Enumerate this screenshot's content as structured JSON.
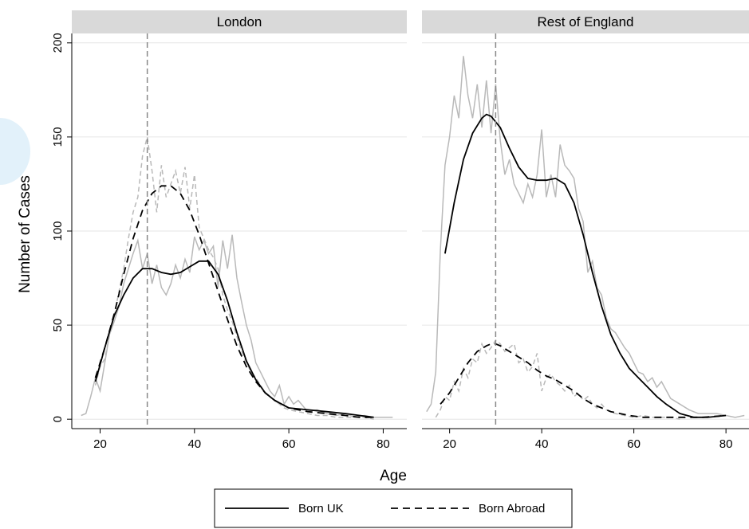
{
  "chart_data": {
    "type": "line",
    "xlabel": "Age",
    "ylabel": "Number of Cases",
    "xlim": [
      14,
      85
    ],
    "ylim": [
      -5,
      205
    ],
    "xticks": [
      20,
      40,
      60,
      80
    ],
    "yticks": [
      0,
      50,
      100,
      150,
      200
    ],
    "reference_x": 30,
    "legend": {
      "placement": "bottom-center",
      "entries": [
        {
          "label": "Born UK",
          "style": "solid"
        },
        {
          "label": "Born Abroad",
          "style": "dashed"
        }
      ]
    },
    "panels": [
      {
        "title": "London",
        "series": [
          {
            "name": "Born UK",
            "kind": "smoothed",
            "x": [
              19,
              21,
              23,
              25,
              27,
              29,
              31,
              33,
              35,
              37,
              39,
              41,
              43,
              45,
              47,
              49,
              51,
              53,
              55,
              57,
              60,
              64,
              68,
              72,
              75,
              78
            ],
            "y": [
              20,
              38,
              55,
              66,
              75,
              80,
              80,
              78,
              77,
              78,
              81,
              84,
              84,
              77,
              63,
              46,
              31,
              21,
              14,
              10,
              6,
              5,
              4,
              3,
              2,
              1
            ]
          },
          {
            "name": "Born Abroad",
            "kind": "smoothed",
            "x": [
              19,
              21,
              23,
              25,
              27,
              29,
              31,
              33,
              35,
              37,
              39,
              41,
              43,
              45,
              47,
              49,
              51,
              53,
              55,
              57,
              60,
              64,
              68,
              72,
              75,
              78
            ],
            "y": [
              22,
              38,
              56,
              77,
              96,
              111,
              120,
              124,
              124,
              120,
              111,
              98,
              83,
              68,
              53,
              39,
              28,
              20,
              14,
              10,
              6,
              4,
              3,
              2,
              1,
              1
            ]
          },
          {
            "name": "Born UK",
            "kind": "raw",
            "x": [
              16,
              17,
              18,
              19,
              20,
              21,
              22,
              23,
              24,
              25,
              26,
              27,
              28,
              29,
              30,
              31,
              32,
              33,
              34,
              35,
              36,
              37,
              38,
              39,
              40,
              41,
              42,
              43,
              44,
              45,
              46,
              47,
              48,
              49,
              50,
              51,
              52,
              53,
              54,
              55,
              56,
              57,
              58,
              59,
              60,
              61,
              62,
              64,
              66,
              68,
              70,
              72,
              74,
              76,
              78,
              80,
              82
            ],
            "y": [
              2,
              3,
              12,
              22,
              15,
              30,
              45,
              52,
              60,
              72,
              80,
              88,
              95,
              80,
              88,
              72,
              82,
              70,
              66,
              72,
              82,
              75,
              85,
              78,
              97,
              90,
              95,
              88,
              92,
              70,
              95,
              80,
              98,
              75,
              62,
              50,
              42,
              30,
              25,
              20,
              15,
              12,
              18,
              8,
              12,
              8,
              10,
              4,
              5,
              3,
              2,
              3,
              1,
              2,
              1,
              1,
              1
            ]
          },
          {
            "name": "Born Abroad",
            "kind": "raw",
            "x": [
              19,
              20,
              21,
              22,
              23,
              24,
              25,
              26,
              27,
              28,
              29,
              30,
              31,
              32,
              33,
              34,
              35,
              36,
              37,
              38,
              39,
              40,
              41,
              42,
              43,
              44,
              45,
              46,
              47,
              48,
              49,
              50,
              51,
              52,
              53,
              54,
              55,
              56,
              57,
              58,
              59,
              60,
              62,
              64,
              66,
              68,
              70,
              72,
              74,
              76,
              78
            ],
            "y": [
              18,
              28,
              32,
              45,
              55,
              68,
              80,
              96,
              110,
              118,
              140,
              150,
              132,
              110,
              135,
              118,
              125,
              132,
              120,
              134,
              112,
              130,
              102,
              96,
              90,
              86,
              80,
              66,
              58,
              52,
              44,
              36,
              30,
              25,
              22,
              18,
              14,
              12,
              10,
              8,
              6,
              5,
              4,
              3,
              2,
              2,
              1,
              1,
              1,
              1,
              0
            ]
          }
        ]
      },
      {
        "title": "Rest of England",
        "series": [
          {
            "name": "Born UK",
            "kind": "smoothed",
            "x": [
              19,
              21,
              23,
              25,
              27,
              28,
              29,
              31,
              33,
              35,
              37,
              39,
              41,
              43,
              45,
              47,
              49,
              51,
              53,
              55,
              57,
              59,
              61,
              63,
              65,
              67,
              70,
              73,
              76,
              80
            ],
            "y": [
              88,
              115,
              138,
              152,
              160,
              162,
              161,
              155,
              144,
              134,
              128,
              127,
              127,
              128,
              125,
              115,
              98,
              78,
              60,
              45,
              35,
              27,
              22,
              17,
              12,
              8,
              3,
              1,
              1,
              2
            ]
          },
          {
            "name": "Born Abroad",
            "kind": "smoothed",
            "x": [
              18,
              20,
              22,
              24,
              26,
              28,
              29,
              30,
              31,
              33,
              35,
              37,
              39,
              41,
              43,
              45,
              47,
              49,
              51,
              53,
              55,
              57,
              59,
              62,
              65,
              70,
              75,
              80
            ],
            "y": [
              8,
              14,
              22,
              30,
              36,
              39,
              40,
              40,
              39,
              36,
              33,
              30,
              26,
              23,
              21,
              18,
              15,
              11,
              8,
              6,
              4,
              3,
              2,
              1,
              1,
              1,
              1,
              2
            ]
          },
          {
            "name": "Born UK",
            "kind": "raw",
            "x": [
              15,
              16,
              17,
              18,
              19,
              20,
              21,
              22,
              23,
              24,
              25,
              26,
              27,
              28,
              29,
              30,
              31,
              32,
              33,
              34,
              35,
              36,
              37,
              38,
              39,
              40,
              41,
              42,
              43,
              44,
              45,
              46,
              47,
              48,
              49,
              50,
              51,
              52,
              53,
              54,
              55,
              56,
              57,
              58,
              59,
              60,
              61,
              62,
              63,
              64,
              65,
              66,
              68,
              70,
              72,
              74,
              76,
              78,
              80,
              82,
              84
            ],
            "y": [
              4,
              8,
              25,
              90,
              135,
              150,
              172,
              160,
              193,
              172,
              160,
              178,
              155,
              180,
              152,
              178,
              148,
              130,
              138,
              125,
              120,
              115,
              125,
              118,
              130,
              154,
              118,
              130,
              118,
              146,
              135,
              132,
              128,
              112,
              105,
              78,
              84,
              70,
              66,
              54,
              48,
              46,
              42,
              38,
              35,
              30,
              25,
              24,
              20,
              22,
              17,
              20,
              11,
              8,
              5,
              3,
              3,
              3,
              2,
              1,
              2
            ]
          },
          {
            "name": "Born Abroad",
            "kind": "raw",
            "x": [
              17,
              18,
              19,
              20,
              21,
              22,
              23,
              24,
              25,
              26,
              27,
              28,
              29,
              30,
              31,
              32,
              33,
              34,
              35,
              36,
              37,
              38,
              39,
              40,
              41,
              42,
              43,
              44,
              45,
              46,
              47,
              48,
              49,
              50,
              51,
              52,
              53,
              54,
              55,
              56,
              58,
              60,
              62,
              64,
              66,
              68,
              70
            ],
            "y": [
              1,
              5,
              12,
              10,
              20,
              15,
              27,
              22,
              32,
              30,
              40,
              35,
              38,
              42,
              40,
              36,
              38,
              40,
              30,
              32,
              25,
              28,
              35,
              15,
              22,
              24,
              20,
              18,
              15,
              18,
              12,
              14,
              10,
              12,
              8,
              6,
              8,
              5,
              4,
              3,
              2,
              1,
              2,
              1,
              1,
              1,
              0
            ]
          }
        ]
      }
    ]
  }
}
